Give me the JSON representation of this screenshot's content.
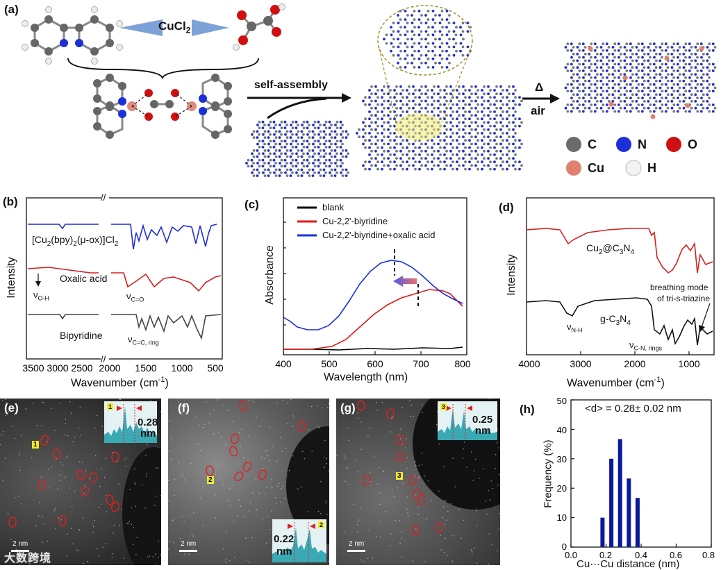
{
  "panels": {
    "a": "(a)",
    "b": "(b)",
    "c": "(c)",
    "d": "(d)",
    "e": "(e)",
    "f": "(f)",
    "g": "(g)",
    "h": "(h)"
  },
  "scheme": {
    "reagent": "CuCl2",
    "reagent_main": "CuCl",
    "reagent_sub": "2",
    "step1": "self-assembly",
    "step2_top": "Δ",
    "step2_bottom": "air",
    "legend": [
      {
        "symbol": "C",
        "color": "#6b6b6b"
      },
      {
        "symbol": "N",
        "color": "#1d2fd6"
      },
      {
        "symbol": "O",
        "color": "#d01010"
      },
      {
        "symbol": "Cu",
        "color": "#e08070"
      },
      {
        "symbol": "H",
        "color": "#e8e8e8"
      }
    ]
  },
  "chart_data": [
    {
      "panel": "b",
      "type": "line",
      "xlabel": "Wavenumber (cm-1)",
      "ylabel": "Intensity",
      "xticks": [
        "3500",
        "3000",
        "2500",
        "2000",
        "1500",
        "1000",
        "500"
      ],
      "x_break": "//",
      "series": [
        {
          "name": "[Cu2(bpy)2(μ-ox)]Cl2",
          "color": "#1f2fd0"
        },
        {
          "name": "Oxalic acid",
          "color": "#d42020"
        },
        {
          "name": "Bipyridine",
          "color": "#444444"
        }
      ],
      "annotations": [
        "νO-H",
        "νC=O",
        "νC=C, ring"
      ]
    },
    {
      "panel": "c",
      "type": "line",
      "xlabel": "Wavelength (nm)",
      "ylabel": "Absorbance",
      "xlim": [
        400,
        800
      ],
      "xticks": [
        "400",
        "500",
        "600",
        "700",
        "800"
      ],
      "series": [
        {
          "name": "blank",
          "color": "#000000"
        },
        {
          "name": "Cu-2,2'-biyridine",
          "color": "#e01818"
        },
        {
          "name": "Cu-2,2'-biyridine+oxalic acid",
          "color": "#1830e0"
        }
      ],
      "peaks_nm": [
        640,
        695
      ]
    },
    {
      "panel": "d",
      "type": "line",
      "xlabel": "Wavenumber (cm-1)",
      "ylabel": "Intensity",
      "xlim": [
        4000,
        500
      ],
      "xticks": [
        "4000",
        "3000",
        "2000",
        "1000"
      ],
      "series": [
        {
          "name": "Cu2@C3N4",
          "color": "#d42020"
        },
        {
          "name": "g-C3N4",
          "color": "#111111"
        }
      ],
      "annotations": [
        "breathing mode",
        "of tri-s-triazine",
        "νN-H",
        "νC-N, rings"
      ]
    },
    {
      "panel": "h",
      "type": "bar",
      "title": "<d> = 0.28± 0.02 nm",
      "xlabel": "Cu···Cu distance (nm)",
      "ylabel": "Frequency (%)",
      "xlim": [
        0.0,
        0.8
      ],
      "ylim": [
        0,
        50
      ],
      "xticks": [
        "0.0",
        "0.2",
        "0.4",
        "0.6",
        "0.8"
      ],
      "yticks": [
        "0",
        "10",
        "20",
        "30",
        "40",
        "50"
      ],
      "bars": [
        {
          "x": 0.18,
          "value": 10
        },
        {
          "x": 0.23,
          "value": 30
        },
        {
          "x": 0.28,
          "value": 36.7
        },
        {
          "x": 0.33,
          "value": 23.3
        },
        {
          "x": 0.38,
          "value": 16.7
        }
      ],
      "bar_color": "#0b1a9c"
    }
  ],
  "stem": {
    "e": {
      "marker": "1",
      "value": "0.28",
      "unit": "nm",
      "scale": "2 nm"
    },
    "f": {
      "marker": "2",
      "value": "0.22",
      "unit": "nm",
      "scale": "2 nm"
    },
    "g": {
      "marker": "3",
      "value": "0.25",
      "unit": "nm",
      "scale": "2 nm"
    }
  },
  "watermark": "大数跨境"
}
